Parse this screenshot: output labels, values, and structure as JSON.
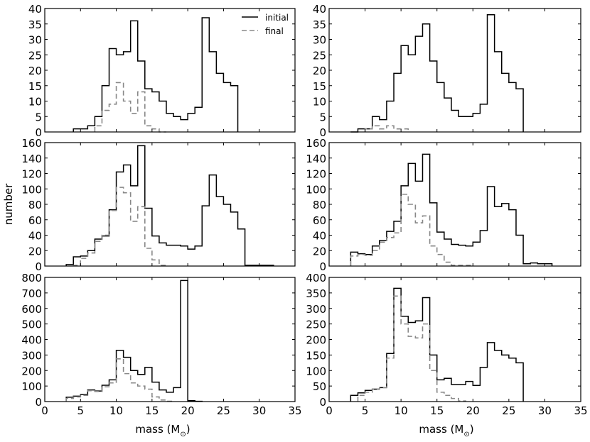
{
  "figure": {
    "ylabel": "number",
    "xlabel_text": "mass (M",
    "xlabel_sym": "⊙",
    "xlabel_close": ")",
    "legend": {
      "initial": "initial",
      "final": "final"
    }
  },
  "chart_data": [
    {
      "type": "histogram",
      "panel": "top-left",
      "xlim": [
        0,
        35
      ],
      "ylim": [
        0,
        40
      ],
      "yticks": [
        0,
        5,
        10,
        15,
        20,
        25,
        30,
        35,
        40
      ],
      "xticks": [
        0,
        5,
        10,
        15,
        20,
        25,
        30,
        35
      ],
      "legend": "top-right",
      "series": [
        {
          "name": "initial",
          "style": "solid",
          "color": "#000000",
          "edges": [
            4,
            5,
            6,
            7,
            8,
            9,
            10,
            11,
            12,
            13,
            14,
            15,
            16,
            17,
            18,
            19,
            20,
            21,
            22,
            23,
            24,
            25,
            26,
            27
          ],
          "values": [
            1,
            1,
            2,
            5,
            15,
            27,
            25,
            26,
            36,
            23,
            14,
            13,
            10,
            6,
            5,
            4,
            6,
            8,
            37,
            26,
            19,
            16,
            15
          ]
        },
        {
          "name": "final",
          "style": "dashed",
          "color": "#888888",
          "edges": [
            7,
            8,
            9,
            10,
            11,
            12,
            13,
            14,
            15,
            16,
            17
          ],
          "values": [
            2,
            7,
            9,
            16,
            10,
            6,
            13,
            2,
            1,
            0
          ]
        }
      ]
    },
    {
      "type": "histogram",
      "panel": "top-right",
      "xlim": [
        0,
        35
      ],
      "ylim": [
        0,
        40
      ],
      "yticks": [
        0,
        5,
        10,
        15,
        20,
        25,
        30,
        35,
        40
      ],
      "xticks": [
        0,
        5,
        10,
        15,
        20,
        25,
        30,
        35
      ],
      "series": [
        {
          "name": "initial",
          "style": "solid",
          "color": "#000000",
          "edges": [
            3,
            4,
            5,
            6,
            7,
            8,
            9,
            10,
            11,
            12,
            13,
            14,
            15,
            16,
            17,
            18,
            19,
            20,
            21,
            22,
            23,
            24,
            25,
            26,
            27
          ],
          "values": [
            0,
            1,
            1,
            5,
            4,
            10,
            19,
            28,
            25,
            31,
            35,
            23,
            16,
            11,
            7,
            5,
            5,
            6,
            9,
            38,
            26,
            19,
            16,
            14
          ]
        },
        {
          "name": "final",
          "style": "dashed",
          "color": "#888888",
          "edges": [
            5,
            6,
            7,
            8,
            9,
            10,
            11
          ],
          "values": [
            1,
            2,
            1,
            2,
            1,
            1
          ]
        }
      ]
    },
    {
      "type": "histogram",
      "panel": "middle-left",
      "xlim": [
        0,
        35
      ],
      "ylim": [
        0,
        160
      ],
      "yticks": [
        0,
        20,
        40,
        60,
        80,
        100,
        120,
        140,
        160
      ],
      "xticks": [
        0,
        5,
        10,
        15,
        20,
        25,
        30,
        35
      ],
      "series": [
        {
          "name": "initial",
          "style": "solid",
          "color": "#000000",
          "edges": [
            3,
            4,
            5,
            6,
            7,
            8,
            9,
            10,
            11,
            12,
            13,
            14,
            15,
            16,
            17,
            18,
            19,
            20,
            21,
            22,
            23,
            24,
            25,
            26,
            27,
            28,
            29,
            30,
            31,
            32
          ],
          "values": [
            2,
            12,
            13,
            20,
            35,
            39,
            73,
            122,
            131,
            104,
            156,
            75,
            39,
            30,
            27,
            27,
            26,
            22,
            26,
            78,
            118,
            90,
            80,
            70,
            48,
            1,
            1,
            1,
            1
          ]
        },
        {
          "name": "final",
          "style": "dashed",
          "color": "#888888",
          "edges": [
            4,
            5,
            6,
            7,
            8,
            9,
            10,
            11,
            12,
            13,
            14,
            15,
            16,
            17
          ],
          "values": [
            1,
            10,
            17,
            32,
            40,
            72,
            102,
            95,
            58,
            77,
            23,
            8,
            1
          ]
        }
      ]
    },
    {
      "type": "histogram",
      "panel": "middle-right",
      "xlim": [
        0,
        35
      ],
      "ylim": [
        0,
        160
      ],
      "yticks": [
        0,
        20,
        40,
        60,
        80,
        100,
        120,
        140,
        160
      ],
      "xticks": [
        0,
        5,
        10,
        15,
        20,
        25,
        30,
        35
      ],
      "series": [
        {
          "name": "initial",
          "style": "solid",
          "color": "#000000",
          "edges": [
            3,
            4,
            5,
            6,
            7,
            8,
            9,
            10,
            11,
            12,
            13,
            14,
            15,
            16,
            17,
            18,
            19,
            20,
            21,
            22,
            23,
            24,
            25,
            26,
            27,
            28,
            29,
            30,
            31
          ],
          "values": [
            18,
            16,
            15,
            26,
            33,
            45,
            58,
            104,
            133,
            110,
            145,
            82,
            44,
            35,
            28,
            27,
            26,
            31,
            46,
            103,
            77,
            81,
            73,
            40,
            3,
            4,
            3,
            3
          ]
        },
        {
          "name": "final",
          "style": "dashed",
          "color": "#888888",
          "edges": [
            3,
            4,
            5,
            6,
            7,
            8,
            9,
            10,
            11,
            12,
            13,
            14,
            15,
            16,
            17,
            18,
            19,
            20
          ],
          "values": [
            13,
            15,
            14,
            20,
            31,
            37,
            43,
            93,
            80,
            56,
            65,
            26,
            15,
            5,
            1,
            1,
            1
          ]
        }
      ]
    },
    {
      "type": "histogram",
      "panel": "bottom-left",
      "xlim": [
        0,
        35
      ],
      "ylim": [
        0,
        800
      ],
      "yticks": [
        0,
        100,
        200,
        300,
        400,
        500,
        600,
        700,
        800
      ],
      "xticks": [
        0,
        5,
        10,
        15,
        20,
        25,
        30,
        35
      ],
      "xtick_labels": [
        "0",
        "5",
        "10",
        "15",
        "20",
        "25",
        "30",
        "35"
      ],
      "series": [
        {
          "name": "initial",
          "style": "solid",
          "color": "#000000",
          "edges": [
            3,
            4,
            5,
            6,
            7,
            8,
            9,
            10,
            11,
            12,
            13,
            14,
            15,
            16,
            17,
            18,
            19,
            20,
            21,
            22
          ],
          "values": [
            28,
            35,
            45,
            75,
            68,
            105,
            140,
            330,
            285,
            200,
            175,
            220,
            125,
            75,
            60,
            90,
            780,
            6,
            2
          ]
        },
        {
          "name": "final",
          "style": "dashed",
          "color": "#888888",
          "edges": [
            3,
            4,
            5,
            6,
            7,
            8,
            9,
            10,
            11,
            12,
            13,
            14,
            15,
            16,
            17,
            18
          ],
          "values": [
            20,
            30,
            40,
            70,
            65,
            95,
            120,
            275,
            180,
            120,
            100,
            80,
            30,
            10,
            2
          ]
        }
      ]
    },
    {
      "type": "histogram",
      "panel": "bottom-right",
      "xlim": [
        0,
        35
      ],
      "ylim": [
        0,
        400
      ],
      "yticks": [
        0,
        50,
        100,
        150,
        200,
        250,
        300,
        350,
        400
      ],
      "xticks": [
        0,
        5,
        10,
        15,
        20,
        25,
        30,
        35
      ],
      "xtick_labels": [
        "0",
        "5",
        "10",
        "15",
        "20",
        "25",
        "30",
        "35"
      ],
      "series": [
        {
          "name": "initial",
          "style": "solid",
          "color": "#000000",
          "edges": [
            3,
            4,
            5,
            6,
            7,
            8,
            9,
            10,
            11,
            12,
            13,
            14,
            15,
            16,
            17,
            18,
            19,
            20,
            21,
            22,
            23,
            24,
            25,
            26,
            27
          ],
          "values": [
            20,
            28,
            36,
            40,
            45,
            155,
            365,
            275,
            255,
            260,
            335,
            150,
            70,
            75,
            55,
            55,
            65,
            52,
            110,
            190,
            165,
            150,
            140,
            125
          ]
        },
        {
          "name": "final",
          "style": "dashed",
          "color": "#888888",
          "edges": [
            4,
            5,
            6,
            7,
            8,
            9,
            10,
            11,
            12,
            13,
            14,
            15,
            16,
            17,
            18,
            19
          ],
          "values": [
            20,
            30,
            40,
            45,
            140,
            340,
            250,
            210,
            205,
            250,
            100,
            30,
            20,
            10,
            2
          ]
        }
      ]
    }
  ]
}
